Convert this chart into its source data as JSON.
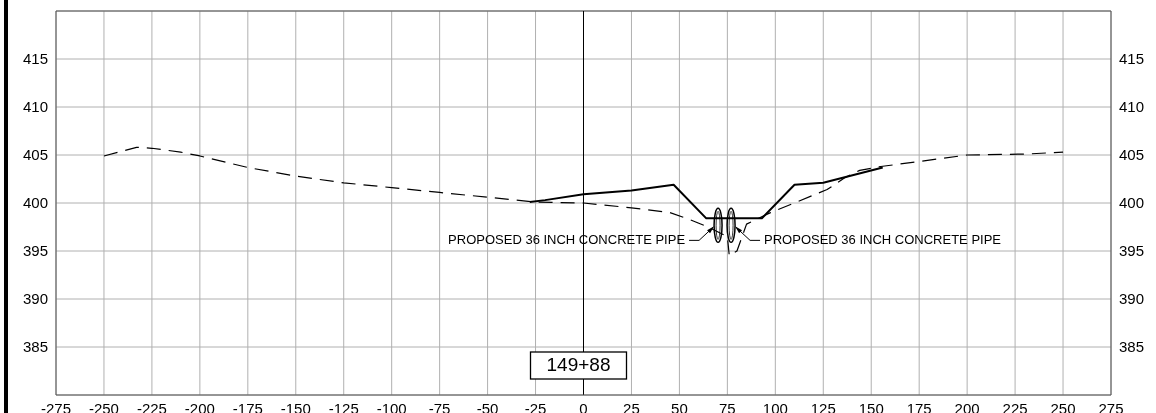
{
  "chart_data": {
    "type": "line",
    "series": [
      {
        "color": "#000000",
        "line_style": "dashed",
        "x": [
          -250,
          -233,
          -225,
          -210,
          -200,
          -175,
          -150,
          -125,
          -100,
          -75,
          -50,
          -25,
          0,
          25,
          45,
          55,
          65,
          75,
          76,
          80,
          85,
          97.5,
          110,
          122,
          127,
          136,
          144,
          155,
          174,
          200,
          231,
          250
        ],
        "values": [
          404.9,
          405.8,
          405.7,
          405.3,
          404.9,
          403.7,
          402.8,
          402.1,
          401.6,
          401.1,
          400.6,
          400.1,
          400.0,
          399.5,
          399.0,
          398.3,
          397.5,
          396.5,
          394.5,
          395.0,
          397.8,
          399.0,
          400.0,
          401.0,
          401.4,
          402.6,
          403.4,
          403.8,
          404.3,
          405.0,
          405.1,
          405.3
        ]
      },
      {
        "color": "#000000",
        "line_style": "solid",
        "x": [
          -28,
          -20,
          0,
          25,
          47,
          64,
          93,
          110,
          125,
          156
        ],
        "values": [
          400.1,
          400.3,
          400.9,
          401.3,
          401.9,
          398.4,
          398.4,
          401.9,
          402.1,
          403.7
        ]
      }
    ],
    "xlim": [
      -275,
      275
    ],
    "xticks": [
      -275,
      -250,
      -225,
      -200,
      -175,
      -150,
      -125,
      -100,
      -75,
      -50,
      -25,
      0,
      25,
      50,
      75,
      100,
      125,
      150,
      175,
      200,
      225,
      250,
      275
    ],
    "ylim": [
      380,
      420
    ],
    "yticks": [
      385,
      390,
      395,
      400,
      405,
      410,
      415
    ],
    "y2lim": [
      380,
      420
    ],
    "y2ticks": [
      385,
      390,
      395,
      400,
      405,
      410,
      415
    ],
    "grid": true,
    "marker": "none",
    "ref_lines": [
      {
        "axis": "x",
        "value": 0,
        "color": "#000000"
      }
    ],
    "annotations": [
      "PROPOSED 36 INCH CONCRETE PIPE",
      "PROPOSED 36 INCH CONCRETE PIPE",
      "149+88"
    ]
  }
}
